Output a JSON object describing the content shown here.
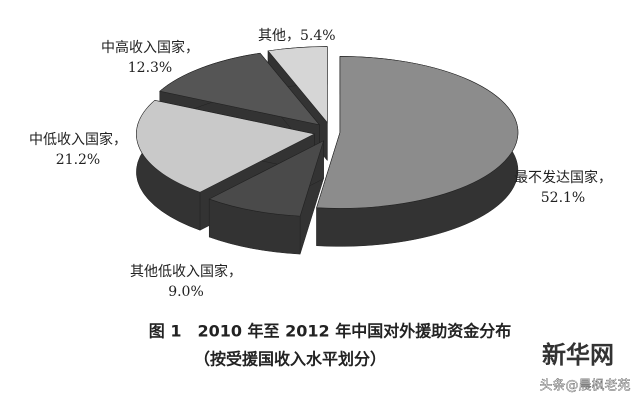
{
  "chart_data": {
    "type": "pie3d",
    "categories": [
      "最不发达国家，",
      "其他低收入国家，",
      "中低收入国家，",
      "中高收入国家，",
      "其他，"
    ],
    "values": [
      52.1,
      9.0,
      21.2,
      12.3,
      5.4
    ],
    "value_labels": [
      "52.1%",
      "9.0%",
      "21.2%",
      "12.3%",
      "5.4%"
    ],
    "colors": [
      "#8c8c8c",
      "#4a4a4a",
      "#c9c9c9",
      "#555555",
      "#d6d6d6"
    ],
    "side_color": "#333333",
    "caption": [
      "图 1　2010 年至 2012 年中国对外援助资金分布",
      "（按受援国收入水平划分）"
    ],
    "watermark": [
      "新华网",
      "头条@晨枫老苑"
    ]
  }
}
